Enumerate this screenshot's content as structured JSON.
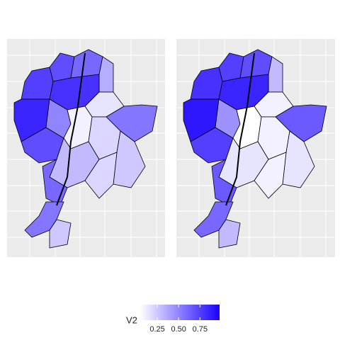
{
  "chart_data": {
    "type": "choropleth",
    "panels": [
      {
        "values": [
          0.7,
          0.6,
          0.35,
          0.75,
          0.8,
          0.85,
          0.5,
          0.1,
          0.15,
          0.55,
          0.2,
          0.25,
          0.7,
          0.3,
          0.2,
          0.6,
          0.55,
          0.25
        ]
      },
      {
        "values": [
          0.75,
          0.7,
          0.3,
          0.8,
          0.85,
          0.9,
          0.45,
          0.05,
          0.1,
          0.65,
          0.1,
          0.15,
          0.75,
          0.15,
          0.1,
          0.65,
          0.6,
          0.3
        ]
      }
    ],
    "legend": {
      "title": "V2",
      "limits": [
        0.05,
        0.98
      ],
      "ticks": [
        0.25,
        {
          "value": 0.5,
          "label": "0.50"
        },
        0.75
      ],
      "low_color": "#ffffff",
      "high_color": "#1a00ff"
    }
  }
}
